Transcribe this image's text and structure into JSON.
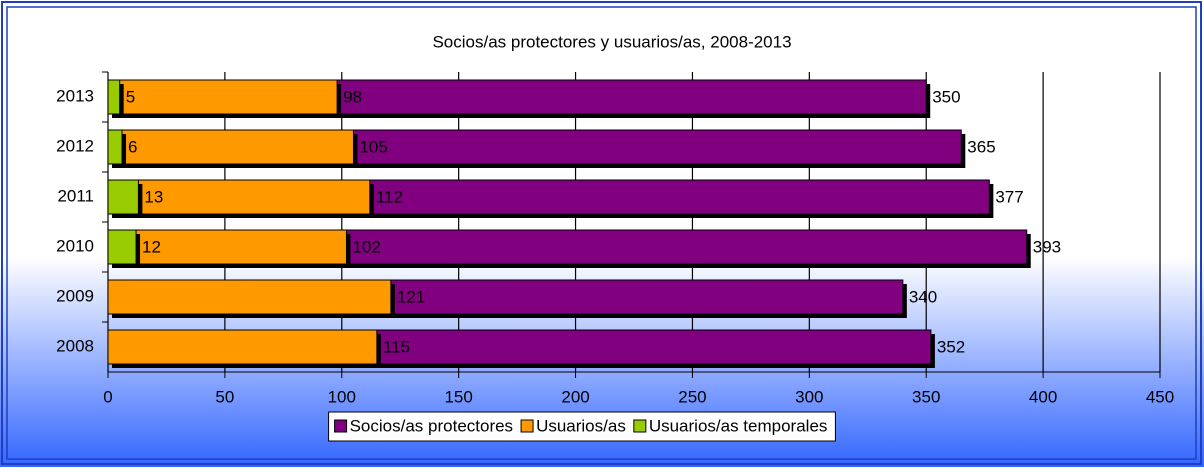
{
  "chart_data": {
    "type": "bar",
    "orientation": "horizontal",
    "overlap": true,
    "title": "Socios/as protectores y usuarios/as, 2008-2013",
    "categories": [
      "2013",
      "2012",
      "2011",
      "2010",
      "2009",
      "2008"
    ],
    "series": [
      {
        "name": "Socios/as protectores",
        "color": "#800080",
        "values": [
          350,
          365,
          377,
          393,
          340,
          352
        ]
      },
      {
        "name": "Usuarios/as",
        "color": "#ff9900",
        "values": [
          98,
          105,
          112,
          102,
          121,
          115
        ]
      },
      {
        "name": "Usuarios/as temporales",
        "color": "#99cc00",
        "values": [
          5,
          6,
          13,
          12,
          null,
          null
        ]
      }
    ],
    "xlim": [
      0,
      450
    ],
    "xticks": [
      0,
      50,
      100,
      150,
      200,
      250,
      300,
      350,
      400,
      450
    ],
    "grid": true,
    "legend": "bottom"
  }
}
